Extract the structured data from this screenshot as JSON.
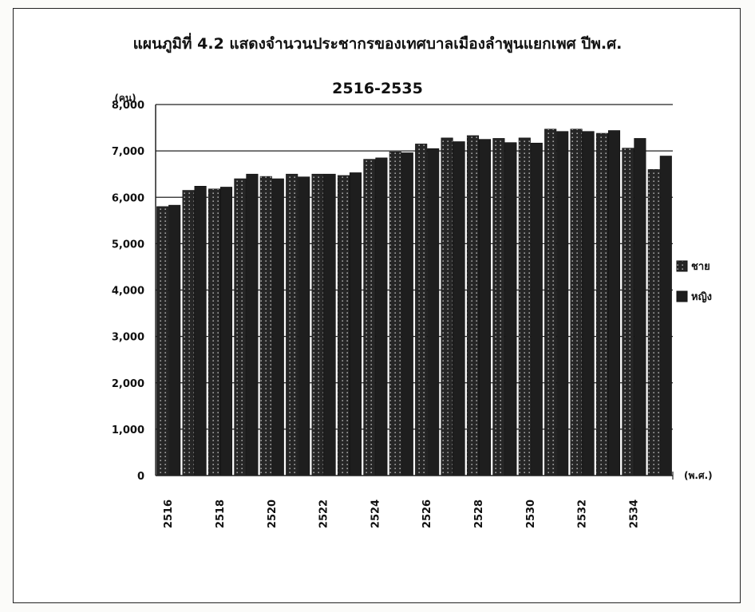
{
  "chart_data": {
    "type": "bar",
    "title": "แผนภูมิที่ 4.2  แสดงจำนวนประชากรของเทศบาลเมืองลำพูนแยกเพศ ปีพ.ศ.",
    "subtitle": "2516-2535",
    "ylabel": "(คน)",
    "xlabel": "(พ.ศ.)",
    "ylim": [
      0,
      8000
    ],
    "yticks": [
      "0",
      "1,000",
      "2,000",
      "3,000",
      "4,000",
      "5,000",
      "6,000",
      "7,000",
      "8,000"
    ],
    "ytick_values": [
      0,
      1000,
      2000,
      3000,
      4000,
      5000,
      6000,
      7000,
      8000
    ],
    "gridlines": true,
    "legend_position": "right",
    "categories": [
      "2516",
      "2517",
      "2518",
      "2519",
      "2520",
      "2521",
      "2522",
      "2523",
      "2524",
      "2525",
      "2526",
      "2527",
      "2528",
      "2529",
      "2530",
      "2531",
      "2532",
      "2533",
      "2534",
      "2535"
    ],
    "xtick_labels": [
      "2516",
      "",
      "2518",
      "",
      "2520",
      "",
      "2522",
      "",
      "2524",
      "",
      "2526",
      "",
      "2528",
      "",
      "2530",
      "",
      "2532",
      "",
      "2534",
      ""
    ],
    "series": [
      {
        "name": "ชาย",
        "pattern": "dotted-dark",
        "color": "#2b2b2b",
        "values": [
          5800,
          6150,
          6180,
          6400,
          6450,
          6500,
          6500,
          6470,
          6820,
          6980,
          7150,
          7280,
          7330,
          7270,
          7280,
          7470,
          7470,
          7380,
          7060,
          6600
        ]
      },
      {
        "name": "หญิง",
        "pattern": "solid-dark",
        "color": "#1e1e1e",
        "values": [
          5830,
          6240,
          6220,
          6500,
          6400,
          6440,
          6500,
          6530,
          6850,
          6960,
          7050,
          7200,
          7250,
          7180,
          7170,
          7420,
          7420,
          7440,
          7270,
          6890
        ]
      }
    ]
  }
}
